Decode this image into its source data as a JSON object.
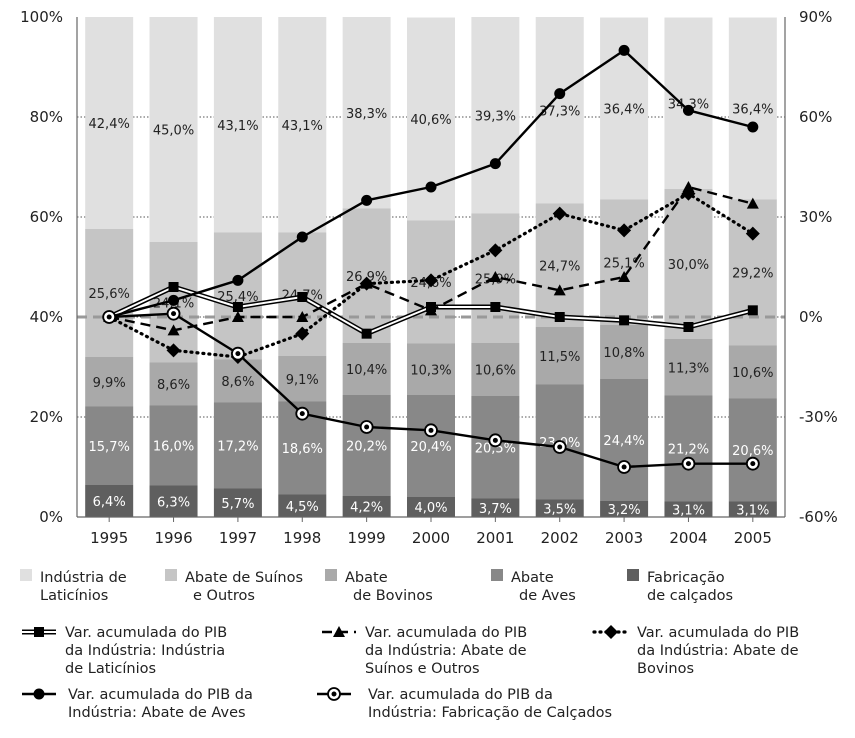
{
  "chart_data": {
    "type": "bar",
    "stacked": true,
    "title": "",
    "categories": [
      "1995",
      "1996",
      "1997",
      "1998",
      "1999",
      "2000",
      "2001",
      "2002",
      "2003",
      "2004",
      "2005"
    ],
    "y_left": {
      "min": 0,
      "max": 100,
      "ticks": [
        "0%",
        "20%",
        "40%",
        "60%",
        "80%",
        "100%"
      ]
    },
    "y_right": {
      "min": -60,
      "max": 90,
      "ticks": [
        "-60%",
        "-30%",
        "0%",
        "30%",
        "60%",
        "90%"
      ]
    },
    "bar_series": [
      {
        "name": "Fabricação de calçados",
        "legend_lines": [
          "Fabricação",
          "de calçados"
        ],
        "color": "#5f5f5f",
        "label_color": "#ffffff",
        "values": [
          6.4,
          6.3,
          5.7,
          4.5,
          4.2,
          4.0,
          3.7,
          3.5,
          3.2,
          3.1,
          3.1
        ],
        "labels": [
          "6,4%",
          "6,3%",
          "5,7%",
          "4,5%",
          "4,2%",
          "4,0%",
          "3,7%",
          "3,5%",
          "3,2%",
          "3,1%",
          "3,1%"
        ]
      },
      {
        "name": "Abate de Aves",
        "legend_lines": [
          "Abate",
          "de Aves"
        ],
        "color": "#888888",
        "label_color": "#ffffff",
        "values": [
          15.7,
          16.0,
          17.2,
          18.6,
          20.2,
          20.4,
          20.5,
          23.0,
          24.4,
          21.2,
          20.6
        ],
        "labels": [
          "15,7%",
          "16,0%",
          "17,2%",
          "18,6%",
          "20,2%",
          "20,4%",
          "20,5%",
          "23,0%",
          "24,4%",
          "21,2%",
          "20,6%"
        ]
      },
      {
        "name": "Abate de Bovinos",
        "legend_lines": [
          "Abate",
          "de Bovinos"
        ],
        "color": "#a9a9a9",
        "label_color": "#222222",
        "values": [
          9.9,
          8.6,
          8.6,
          9.1,
          10.4,
          10.3,
          10.6,
          11.5,
          10.8,
          11.3,
          10.6
        ],
        "labels": [
          "9,9%",
          "8,6%",
          "8,6%",
          "9,1%",
          "10,4%",
          "10,3%",
          "10,6%",
          "11,5%",
          "10,8%",
          "11,3%",
          "10,6%"
        ]
      },
      {
        "name": "Abate de Suínos e Outros",
        "legend_lines": [
          "Abate de Suínos",
          "e Outros"
        ],
        "color": "#c5c5c5",
        "label_color": "#222222",
        "values": [
          25.6,
          24.1,
          25.4,
          24.7,
          26.9,
          24.6,
          25.9,
          24.7,
          25.1,
          30.0,
          29.2
        ],
        "labels": [
          "25,6%",
          "24,1%",
          "25,4%",
          "24,7%",
          "26,9%",
          "24,6%",
          "25,9%",
          "24,7%",
          "25,1%",
          "30,0%",
          "29,2%"
        ]
      },
      {
        "name": "Indústria de Laticínios",
        "legend_lines": [
          "Indústria de",
          "Laticínios"
        ],
        "color": "#e0e0e0",
        "label_color": "#222222",
        "values": [
          42.4,
          45.0,
          43.1,
          43.1,
          38.3,
          40.6,
          39.3,
          37.3,
          36.4,
          34.3,
          36.4
        ],
        "labels": [
          "42,4%",
          "45,0%",
          "43,1%",
          "43,1%",
          "38,3%",
          "40,6%",
          "39,3%",
          "37,3%",
          "36,4%",
          "34,3%",
          "36,4%"
        ]
      }
    ],
    "line_series": [
      {
        "name": "Var. acumulada do PIB da Indústria: Indústria de Laticínios",
        "legend_lines": [
          "Var. acumulada do PIB",
          "da Indústria: Indústria",
          "de Laticínios"
        ],
        "style": "double",
        "marker": "square",
        "values": [
          0,
          9,
          3,
          6,
          -5,
          3,
          3,
          0,
          -1,
          -3,
          2
        ]
      },
      {
        "name": "Var. acumulada do PIB da Indústria: Abate de Suínos e Outros",
        "legend_lines": [
          "Var. acumulada do PIB",
          "da Indústria: Abate de",
          "Suínos e Outros"
        ],
        "style": "dashed",
        "marker": "triangle",
        "values": [
          0,
          -4,
          0,
          0,
          10,
          2,
          12,
          8,
          12,
          39,
          34
        ]
      },
      {
        "name": "Var. acumulada do PIB da Indústria: Abate de Bovinos",
        "legend_lines": [
          "Var. acumulada do PIB",
          "da Indústria: Abate de",
          "Bovinos"
        ],
        "style": "dotted",
        "marker": "diamond",
        "values": [
          0,
          -10,
          -12,
          -5,
          10,
          11,
          20,
          31,
          26,
          37,
          25
        ]
      },
      {
        "name": "Var. acumulada do PIB da Indústria: Abate de Aves",
        "legend_lines": [
          "Var. acumulada do PIB da",
          "Indústria: Abate de Aves"
        ],
        "style": "solid",
        "marker": "circle",
        "values": [
          0,
          5,
          11,
          24,
          35,
          39,
          46,
          67,
          80,
          62,
          57
        ]
      },
      {
        "name": "Var. acumulada do PIB da Indústria: Fabricação de Calçados",
        "legend_lines": [
          "Var. acumulada do PIB da",
          "Indústria: Fabricação de Calçados"
        ],
        "style": "solid",
        "marker": "ring",
        "values": [
          0,
          1,
          -11,
          -29,
          -33,
          -34,
          -37,
          -39,
          -45,
          -44,
          -44
        ]
      }
    ],
    "grid": true,
    "reference_line": 0,
    "legend": "bottom"
  }
}
